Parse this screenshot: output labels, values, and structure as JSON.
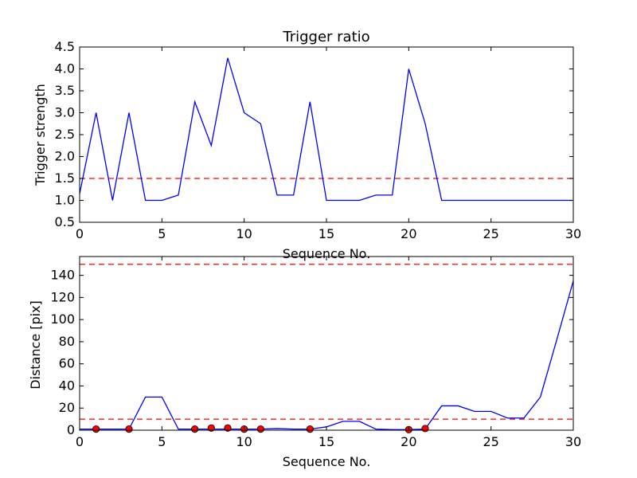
{
  "chart_data": [
    {
      "type": "line",
      "title": "Trigger ratio",
      "xlabel": "Sequence No.",
      "ylabel": "Trigger strength",
      "xlim": [
        0,
        30
      ],
      "ylim": [
        0.5,
        4.5
      ],
      "xticks": [
        0,
        5,
        10,
        15,
        20,
        25,
        30
      ],
      "yticks": [
        0.5,
        1.0,
        1.5,
        2.0,
        2.5,
        3.0,
        3.5,
        4.0,
        4.5
      ],
      "ytick_labels": [
        "0.5",
        "1.0",
        "1.5",
        "2.0",
        "2.5",
        "3.0",
        "3.5",
        "4.0",
        "4.5"
      ],
      "grid": false,
      "series": [
        {
          "color": "#0000ff",
          "style": "solid",
          "x": [
            0,
            1,
            2,
            3,
            4,
            5,
            6,
            7,
            8,
            9,
            10,
            11,
            12,
            13,
            14,
            15,
            16,
            17,
            18,
            19,
            20,
            21,
            22,
            23,
            24,
            25,
            26,
            27,
            28,
            29,
            30
          ],
          "values": [
            1.15,
            3.0,
            1.0,
            3.0,
            1.0,
            1.0,
            1.12,
            3.25,
            2.25,
            4.25,
            3.0,
            2.75,
            1.12,
            1.12,
            3.25,
            1.0,
            1.0,
            1.0,
            1.12,
            1.12,
            4.0,
            2.75,
            1.0,
            1.0,
            1.0,
            1.0,
            1.0,
            1.0,
            1.0,
            1.0,
            1.0
          ]
        }
      ],
      "reference_lines": [
        {
          "y": 1.5,
          "color": "#ff0000",
          "style": "dashed"
        }
      ]
    },
    {
      "type": "line",
      "title": "",
      "xlabel": "Sequence No.",
      "ylabel": "Distance [pix]",
      "xlim": [
        0,
        30
      ],
      "ylim": [
        0,
        157
      ],
      "xticks": [
        0,
        5,
        10,
        15,
        20,
        25,
        30
      ],
      "yticks": [
        0,
        20,
        40,
        60,
        80,
        100,
        120,
        140
      ],
      "ytick_labels": [
        "0",
        "20",
        "40",
        "60",
        "80",
        "100",
        "120",
        "140"
      ],
      "grid": false,
      "series": [
        {
          "color": "#0000ff",
          "style": "solid",
          "x": [
            0,
            1,
            2,
            3,
            4,
            5,
            6,
            7,
            8,
            9,
            10,
            11,
            12,
            13,
            14,
            15,
            16,
            17,
            18,
            19,
            20,
            21,
            22,
            23,
            24,
            25,
            26,
            27,
            28,
            29,
            30
          ],
          "values": [
            1,
            1,
            1,
            1,
            30,
            30,
            1,
            1,
            1,
            1,
            1,
            1,
            1.5,
            1,
            1,
            3,
            8,
            8,
            1,
            0.5,
            0.5,
            1,
            22,
            22,
            17,
            17,
            11,
            11,
            30,
            82,
            135
          ]
        }
      ],
      "markers": {
        "color": "#ff0000",
        "x": [
          1,
          3,
          7,
          8,
          9,
          10,
          11,
          14,
          20,
          21
        ],
        "values": [
          1,
          1,
          1,
          2,
          2,
          1,
          1,
          1,
          0.5,
          1.5
        ]
      },
      "reference_lines": [
        {
          "y": 150,
          "color": "#ff0000",
          "style": "dashed"
        },
        {
          "y": 10,
          "color": "#ff0000",
          "style": "dashed"
        }
      ]
    }
  ]
}
